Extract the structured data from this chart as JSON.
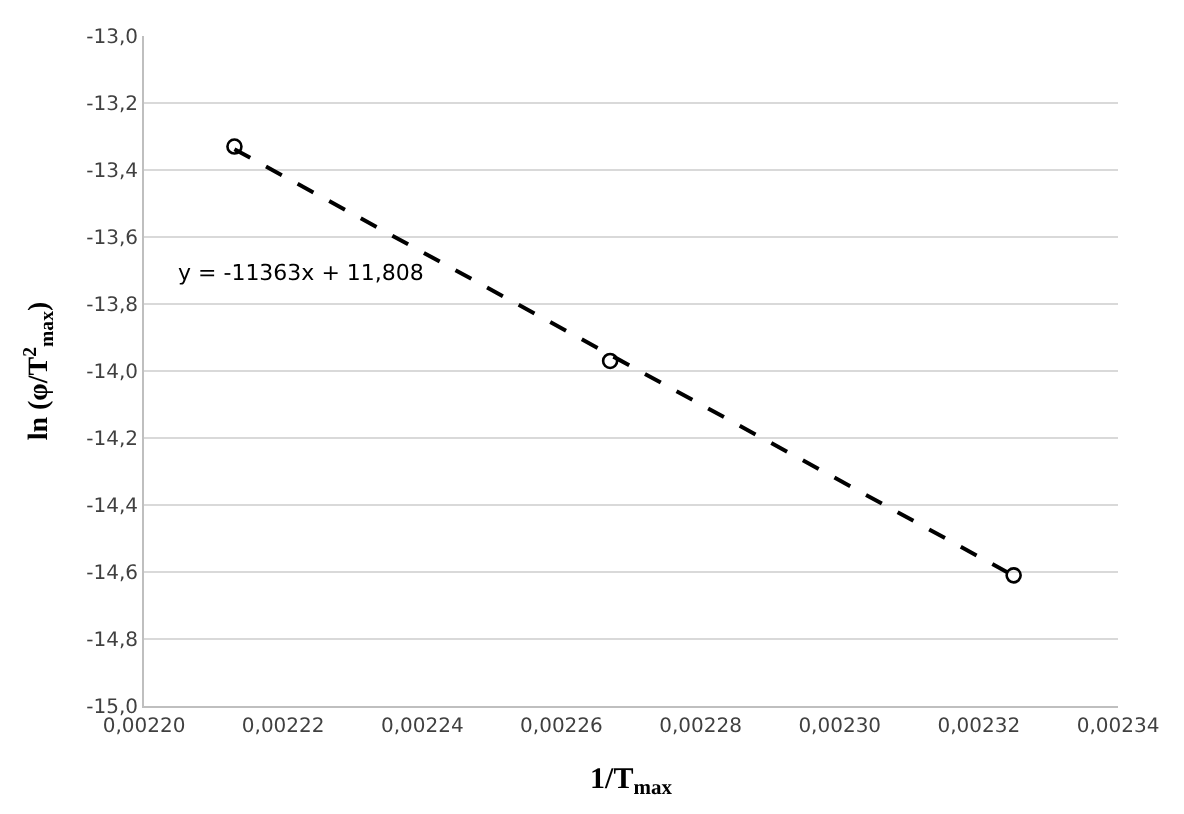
{
  "chart_data": {
    "type": "scatter",
    "xlabel": "1/T$_{max}$",
    "ylabel": "ln (φ/T$^{2}$$_{max}$)",
    "series": [
      {
        "color": "#000000",
        "marker": "circle",
        "x": [
          0.002213,
          0.002267,
          0.002325
        ],
        "values": [
          -13.33,
          -13.97,
          -14.61
        ]
      },
      {
        "type": "line",
        "color": "#000000",
        "line_style": "dashed",
        "marker": "none",
        "x": [
          0.002213,
          0.002325
        ],
        "values": [
          -13.338,
          -14.611
        ]
      }
    ],
    "annotations": [
      "y = -11363x + 11,808"
    ],
    "xlim": [
      0.0022,
      0.00234
    ],
    "ylim": [
      -15.0,
      -13.0
    ],
    "xticks": [
      {
        "value": 0.0022,
        "label": "0,00220"
      },
      {
        "value": 0.00222,
        "label": "0,00222"
      },
      {
        "value": 0.00224,
        "label": "0,00224"
      },
      {
        "value": 0.00226,
        "label": "0,00226"
      },
      {
        "value": 0.00228,
        "label": "0,00228"
      },
      {
        "value": 0.0023,
        "label": "0,00230"
      },
      {
        "value": 0.00232,
        "label": "0,00232"
      },
      {
        "value": 0.00234,
        "label": "0,00234"
      }
    ],
    "yticks": [
      {
        "value": -15.0,
        "label": "-15,0"
      },
      {
        "value": -14.8,
        "label": "-14,8"
      },
      {
        "value": -14.6,
        "label": "-14,6"
      },
      {
        "value": -14.4,
        "label": "-14,4"
      },
      {
        "value": -14.2,
        "label": "-14,2"
      },
      {
        "value": -14.0,
        "label": "-14,0"
      },
      {
        "value": -13.8,
        "label": "-13,8"
      },
      {
        "value": -13.6,
        "label": "-13,6"
      },
      {
        "value": -13.4,
        "label": "-13,4"
      },
      {
        "value": -13.2,
        "label": "-13,2"
      },
      {
        "value": -13.0,
        "label": "-13,0"
      }
    ],
    "grid": "y"
  }
}
